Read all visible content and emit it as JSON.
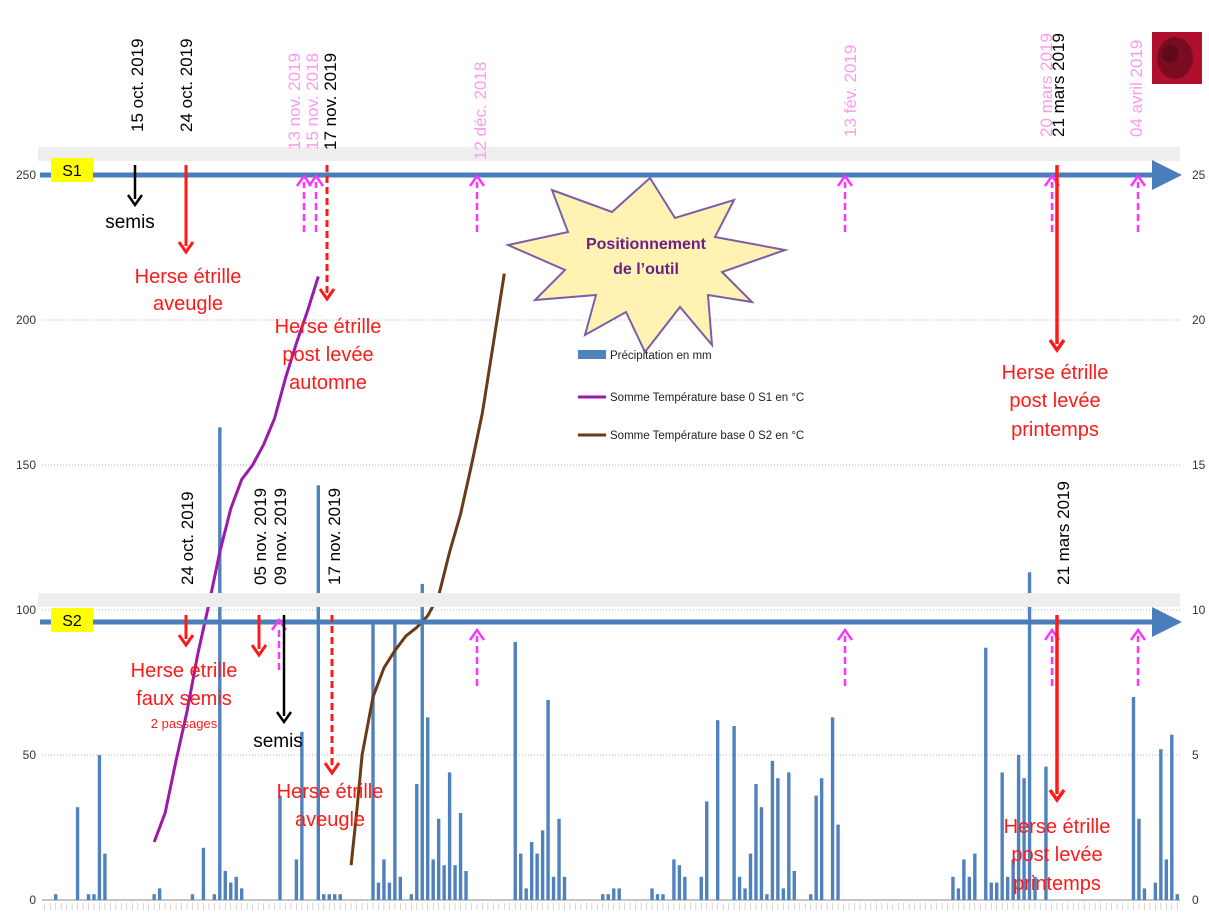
{
  "chart_data": {
    "type": "bar",
    "y_left": {
      "ticks": [
        "0",
        "50",
        "100",
        "150",
        "200",
        "250"
      ],
      "ylim": [
        0,
        250
      ]
    },
    "y_right": {
      "ticks": [
        "0",
        "5",
        "10",
        "15",
        "20",
        "25"
      ],
      "ylim": [
        0,
        25
      ]
    },
    "grid": true,
    "legend": {
      "placement": "center",
      "entries": [
        {
          "label": "Précipitation en mm",
          "color": "#4f81bd",
          "kind": "bar"
        },
        {
          "label": "Somme Température base 0 S1 en °C",
          "color": "#9b1aa8",
          "kind": "line"
        },
        {
          "label": "Somme Température base 0 S2 en °C",
          "color": "#6b3a16",
          "kind": "line"
        }
      ]
    },
    "series": [
      {
        "name": "Précipitation en mm",
        "axis": "right",
        "values": [
          0,
          0,
          0.2,
          0,
          0,
          0,
          3.2,
          0,
          0.2,
          0.2,
          5,
          1.6,
          0,
          0,
          0,
          0,
          0,
          0,
          0,
          0,
          0.2,
          0.4,
          0,
          0,
          0,
          0,
          0,
          0.2,
          0,
          1.8,
          0,
          0.2,
          16.3,
          1,
          0.6,
          0.8,
          0.4,
          0,
          0,
          0,
          0,
          0,
          0,
          3.6,
          0,
          0,
          1.4,
          5.8,
          0,
          0,
          14.3,
          0.2,
          0.2,
          0.2,
          0.2,
          0,
          0,
          0,
          0,
          0,
          9.6,
          0.6,
          1.4,
          0.6,
          9.6,
          0.8,
          0,
          0.2,
          4,
          10.9,
          6.3,
          1.4,
          2.8,
          1.2,
          4.4,
          1.2,
          3,
          1,
          0,
          0,
          0,
          0,
          0,
          0,
          0,
          0,
          8.9,
          1.6,
          0.4,
          2,
          1.6,
          2.4,
          6.9,
          0.8,
          2.8,
          0.8,
          0,
          0,
          0,
          0,
          0,
          0,
          0.2,
          0.2,
          0.4,
          0.4,
          0,
          0,
          0,
          0,
          0,
          0.4,
          0.2,
          0.2,
          0,
          1.4,
          1.2,
          0.8,
          0,
          0,
          0.8,
          3.4,
          0,
          6.2,
          0,
          0,
          6,
          0.8,
          0.4,
          1.6,
          4,
          3.2,
          0.2,
          4.8,
          4.2,
          0.4,
          4.4,
          1,
          0,
          0,
          0.2,
          3.6,
          4.2,
          0,
          6.3,
          2.6,
          0,
          0,
          0,
          0,
          0,
          0,
          0,
          0,
          0,
          0,
          0,
          0,
          0,
          0,
          0,
          0,
          0,
          0,
          0,
          0,
          0.8,
          0.4,
          1.4,
          0.8,
          1.6,
          0,
          8.7,
          0.6,
          0.6,
          4.4,
          0.8,
          1.4,
          5,
          4.2,
          11.3,
          0.8,
          0,
          4.6,
          0,
          0,
          0,
          0,
          0,
          0,
          0,
          0,
          0,
          0,
          0,
          0,
          0,
          0,
          0,
          7,
          2.8,
          0.4,
          0,
          0.6,
          5.2,
          1.4,
          5.7,
          0.2
        ]
      },
      {
        "name": "Somme Température base 0 S1 en °C",
        "axis": "left",
        "points": [
          [
            20,
            20
          ],
          [
            22,
            30
          ],
          [
            24,
            48
          ],
          [
            26,
            65
          ],
          [
            28,
            85
          ],
          [
            30,
            102
          ],
          [
            32,
            120
          ],
          [
            34,
            135
          ],
          [
            36,
            145
          ],
          [
            38,
            150
          ],
          [
            40,
            157
          ],
          [
            42,
            166
          ],
          [
            44,
            180
          ],
          [
            46,
            192
          ],
          [
            48,
            203
          ],
          [
            50,
            215
          ]
        ]
      },
      {
        "name": "Somme Température base 0 S2 en °C",
        "axis": "left",
        "points": [
          [
            56,
            12
          ],
          [
            57,
            30
          ],
          [
            58,
            50
          ],
          [
            60,
            70
          ],
          [
            62,
            80
          ],
          [
            64,
            86
          ],
          [
            66,
            91
          ],
          [
            68,
            94
          ],
          [
            70,
            98
          ],
          [
            72,
            105
          ],
          [
            74,
            120
          ],
          [
            76,
            133
          ],
          [
            78,
            150
          ],
          [
            80,
            168
          ],
          [
            82,
            192
          ],
          [
            84,
            216
          ]
        ]
      }
    ]
  },
  "lanes": {
    "s1": {
      "label": "S1",
      "dates": [
        {
          "text": "15 oct. 2019",
          "color": "black"
        },
        {
          "text": "24 oct. 2019",
          "color": "black"
        },
        {
          "text": "13 nov. 2019",
          "color": "pink"
        },
        {
          "text": "15 nov. 2018",
          "color": "pink"
        },
        {
          "text": "17 nov. 2019",
          "color": "black"
        },
        {
          "text": "12 déc. 2018",
          "color": "pink"
        },
        {
          "text": "13 fév. 2019",
          "color": "pink"
        },
        {
          "text": "20 mars 2019",
          "color": "pink"
        },
        {
          "text": "21 mars 2019",
          "color": "black"
        },
        {
          "text": "04 avril 2019",
          "color": "pink"
        }
      ]
    },
    "s2": {
      "label": "S2",
      "dates": [
        {
          "text": "24 oct. 2019",
          "color": "black"
        },
        {
          "text": "05 nov. 2019",
          "color": "black"
        },
        {
          "text": "09 nov. 2019",
          "color": "black"
        },
        {
          "text": "17 nov. 2019",
          "color": "black"
        },
        {
          "text": "21 mars 2019",
          "color": "black"
        }
      ]
    }
  },
  "annotations": {
    "semis": "semis",
    "s1_aveugle": [
      "Herse étrille",
      "aveugle"
    ],
    "s1_automne": [
      "Herse étrille",
      "post levée",
      "automne"
    ],
    "s1_printemps": [
      "Herse étrille",
      "post levée",
      "printemps"
    ],
    "s2_faux": [
      "Herse étrille",
      "faux semis"
    ],
    "s2_passages": "2 passages",
    "s2_aveugle": [
      "Herse étrille",
      "aveugle"
    ],
    "s2_printemps": [
      "Herse étrille",
      "post levée",
      "printemps"
    ],
    "starburst": [
      "Positionnement",
      "de l’outil"
    ]
  },
  "colors": {
    "axis_arrow": "#4a7ebb",
    "red": "#ff1a1a",
    "pink": "#ff33ff",
    "pink_text": "#ff99ee",
    "lane_label_bg": "#ffff00",
    "star_fill": "#fff2b3",
    "star_stroke": "#7b5ea7"
  }
}
